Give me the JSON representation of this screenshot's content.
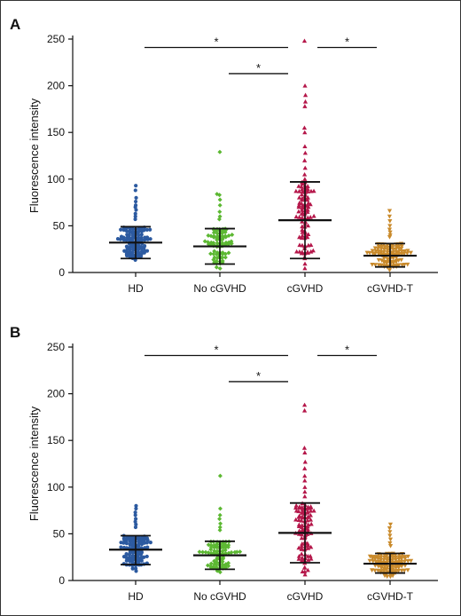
{
  "colors": {
    "HD": "#2c5aa0",
    "No cGVHD": "#5cb832",
    "cGVHD": "#b5174a",
    "cGVHD-T": "#c98a2b",
    "bars": "#111111"
  },
  "marker_shapes": {
    "HD": "circle",
    "No cGVHD": "diamond",
    "cGVHD": "triangle-up",
    "cGVHD-T": "triangle-down"
  },
  "chart_data": [
    {
      "panel_label": "A",
      "type": "scatter",
      "categories": [
        "HD",
        "No cGVHD",
        "cGVHD",
        "cGVHD-T"
      ],
      "ylabel": "Fluorescence intensity",
      "xlabel": "",
      "ylim": [
        0,
        250
      ],
      "yticks": [
        0,
        50,
        100,
        150,
        200,
        250
      ],
      "grid": false,
      "series": [
        {
          "category": "HD",
          "mean": 32,
          "sd_low": 15,
          "sd_high": 49,
          "n": 110,
          "min": 12,
          "max": 93,
          "high_points": [
            93,
            88,
            80,
            76,
            72,
            70,
            67,
            63,
            60,
            57
          ]
        },
        {
          "category": "No cGVHD",
          "mean": 28,
          "sd_low": 9,
          "sd_high": 47,
          "n": 90,
          "min": 4,
          "max": 129,
          "high_points": [
            129,
            84,
            83,
            78,
            72,
            65,
            60,
            57
          ]
        },
        {
          "category": "cGVHD",
          "mean": 56,
          "sd_low": 15,
          "sd_high": 97,
          "n": 110,
          "min": 3,
          "max": 248,
          "high_points": [
            248,
            200,
            190,
            183,
            178,
            155,
            150,
            135,
            128,
            120,
            112,
            105,
            100
          ]
        },
        {
          "category": "cGVHD-T",
          "mean": 18,
          "sd_low": 6,
          "sd_high": 31,
          "n": 110,
          "min": 2,
          "max": 66,
          "high_points": [
            66,
            60,
            55,
            50,
            46,
            43,
            40,
            38
          ]
        }
      ],
      "significance": [
        {
          "from": "HD",
          "to": "cGVHD",
          "y": 241,
          "label": "*"
        },
        {
          "from": "No cGVHD",
          "to": "cGVHD",
          "y": 213,
          "label": "*"
        },
        {
          "from": "cGVHD",
          "to": "cGVHD-T",
          "y": 241,
          "label": "*"
        }
      ]
    },
    {
      "panel_label": "B",
      "type": "scatter",
      "categories": [
        "HD",
        "No cGVHD",
        "cGVHD",
        "cGVHD-T"
      ],
      "ylabel": "Fluorescence intensity",
      "xlabel": "",
      "ylim": [
        0,
        250
      ],
      "yticks": [
        0,
        50,
        100,
        150,
        200,
        250
      ],
      "grid": false,
      "series": [
        {
          "category": "HD",
          "mean": 33,
          "sd_low": 17,
          "sd_high": 48,
          "n": 110,
          "min": 10,
          "max": 80,
          "high_points": [
            80,
            77,
            73,
            70,
            66,
            63,
            60,
            57
          ]
        },
        {
          "category": "No cGVHD",
          "mean": 27,
          "sd_low": 12,
          "sd_high": 42,
          "n": 90,
          "min": 5,
          "max": 112,
          "high_points": [
            112,
            77,
            70,
            66,
            61,
            57,
            54
          ]
        },
        {
          "category": "cGVHD",
          "mean": 51,
          "sd_low": 19,
          "sd_high": 83,
          "n": 110,
          "min": 5,
          "max": 188,
          "high_points": [
            188,
            182,
            142,
            137,
            127,
            120,
            112,
            107,
            100,
            95,
            90
          ]
        },
        {
          "category": "cGVHD-T",
          "mean": 18,
          "sd_low": 8,
          "sd_high": 29,
          "n": 110,
          "min": 3,
          "max": 60,
          "high_points": [
            60,
            56,
            52,
            48,
            44,
            40,
            37
          ]
        }
      ],
      "significance": [
        {
          "from": "HD",
          "to": "cGVHD",
          "y": 241,
          "label": "*"
        },
        {
          "from": "No cGVHD",
          "to": "cGVHD",
          "y": 213,
          "label": "*"
        },
        {
          "from": "cGVHD",
          "to": "cGVHD-T",
          "y": 241,
          "label": "*"
        }
      ]
    }
  ]
}
